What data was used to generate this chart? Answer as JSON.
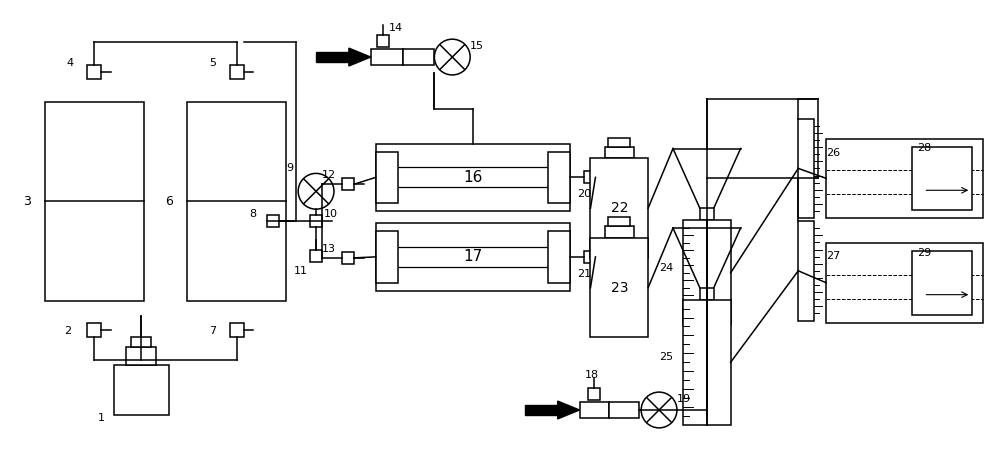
{
  "bg": "#ffffff",
  "lc": "#000000",
  "lw": 1.1
}
